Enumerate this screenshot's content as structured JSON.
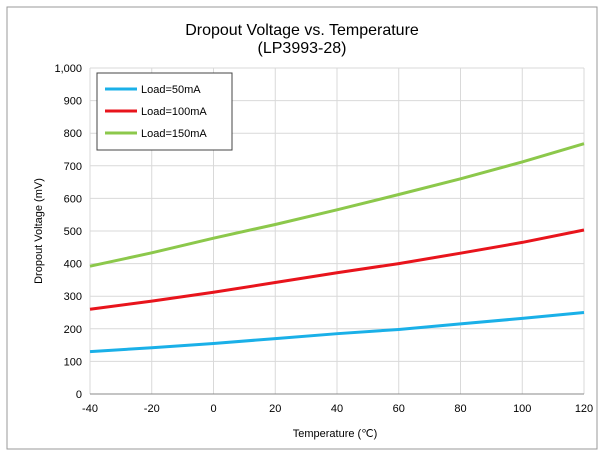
{
  "chart_data": {
    "type": "line",
    "title": "Dropout Voltage vs. Temperature",
    "subtitle": "(LP3993-28)",
    "x_label": "Temperature (℃)",
    "y_label": "Dropout Voltage (mV)",
    "x": [
      -40,
      -20,
      0,
      20,
      40,
      60,
      80,
      100,
      120
    ],
    "series": [
      {
        "name": "Load=50mA",
        "color": "#1ab0e8",
        "values": [
          130,
          142,
          155,
          170,
          185,
          198,
          215,
          232,
          250
        ]
      },
      {
        "name": "Load=100mA",
        "color": "#e8141c",
        "values": [
          260,
          285,
          312,
          342,
          372,
          400,
          432,
          465,
          503
        ]
      },
      {
        "name": "Load=150mA",
        "color": "#8cc84b",
        "values": [
          392,
          433,
          478,
          520,
          565,
          612,
          660,
          712,
          768
        ]
      }
    ],
    "xlim": [
      -40,
      120
    ],
    "xticks": [
      -40,
      -20,
      0,
      20,
      40,
      60,
      80,
      100,
      120
    ],
    "ylim": [
      0,
      1000
    ],
    "yticks": [
      0,
      100,
      200,
      300,
      400,
      500,
      600,
      700,
      800,
      900,
      {
        "value": 1000,
        "label": "1,000"
      }
    ],
    "grid": true,
    "legend": "upper-left"
  }
}
